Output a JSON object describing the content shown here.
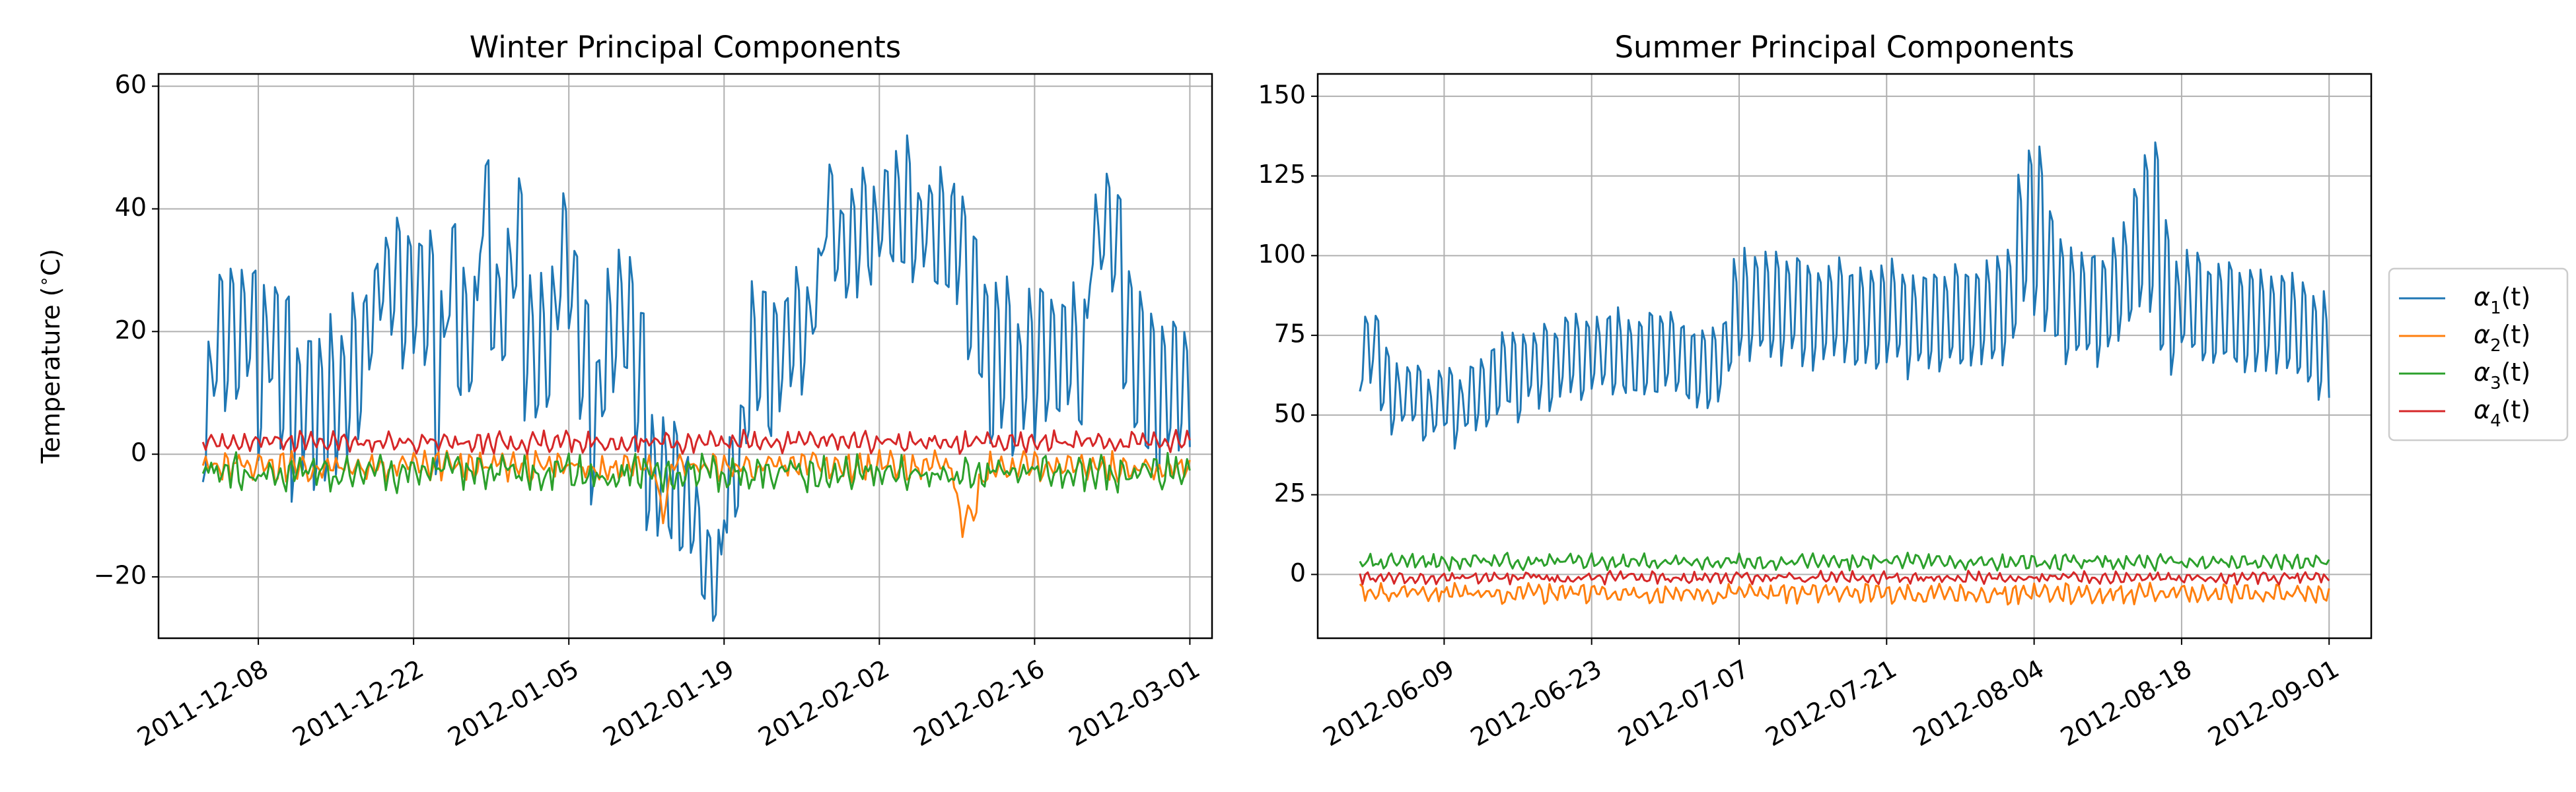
{
  "figure": {
    "colors": {
      "alpha1": "#1f77b4",
      "alpha2": "#ff7f0e",
      "alpha3": "#2ca02c",
      "alpha4": "#d62728",
      "grid": "#b0b0b0"
    },
    "legend": {
      "placement": "right of figure, vertically centered",
      "entries": [
        {
          "label": "α1(t)",
          "sym": "α",
          "sub": "1",
          "tail": "(t)",
          "color": "#1f77b4"
        },
        {
          "label": "α2(t)",
          "sym": "α",
          "sub": "2",
          "tail": "(t)",
          "color": "#ff7f0e"
        },
        {
          "label": "α3(t)",
          "sym": "α",
          "sub": "3",
          "tail": "(t)",
          "color": "#2ca02c"
        },
        {
          "label": "α4(t)",
          "sym": "α",
          "sub": "4",
          "tail": "(t)",
          "color": "#d62728"
        }
      ]
    }
  },
  "chart_data": [
    {
      "type": "line",
      "title": "Winter Principal Components",
      "xlabel": "",
      "ylabel": "Temperature (°C)",
      "ylabel_parts": {
        "pre": "Temperature (",
        "sup": "∘",
        "post": "C)"
      },
      "x_type": "date",
      "x_range": [
        "2011-12-03",
        "2012-03-01"
      ],
      "xlim": [
        "2011-11-29",
        "2012-03-03"
      ],
      "xticks": [
        "2011-12-08",
        "2011-12-22",
        "2012-01-05",
        "2012-01-19",
        "2012-02-02",
        "2012-02-16",
        "2012-03-01"
      ],
      "ylim": [
        -30,
        62
      ],
      "yticks": [
        -20,
        0,
        20,
        40,
        60
      ],
      "ytick_labels": [
        "−20",
        "0",
        "20",
        "40",
        "60"
      ],
      "grid": true,
      "samples_per_day": 4,
      "series": [
        {
          "name": "α1(t)",
          "color": "#1f77b4",
          "daily_base": [
            8,
            22,
            18,
            20,
            22,
            14,
            20,
            15,
            6,
            10,
            8,
            9,
            10,
            12,
            16,
            24,
            28,
            28,
            24,
            26,
            26,
            12,
            28,
            20,
            20,
            40,
            24,
            25,
            33,
            18,
            18,
            20,
            30,
            28,
            16,
            4,
            16,
            22,
            22,
            12,
            -4,
            -3,
            -5,
            -8,
            -12,
            -18,
            -20,
            -5,
            0,
            14,
            16,
            14,
            18,
            22,
            20,
            28,
            38,
            34,
            36,
            36,
            36,
            38,
            40,
            40,
            36,
            38,
            36,
            36,
            34,
            26,
            20,
            14,
            16,
            12,
            16,
            16,
            16,
            16,
            16,
            14,
            34,
            38,
            36,
            20,
            16,
            10,
            8,
            14,
            10
          ],
          "daily_amp": [
            16,
            12,
            14,
            12,
            12,
            18,
            12,
            14,
            16,
            14,
            14,
            14,
            14,
            14,
            14,
            10,
            10,
            12,
            14,
            12,
            12,
            16,
            12,
            14,
            12,
            10,
            12,
            12,
            12,
            12,
            12,
            14,
            12,
            10,
            14,
            16,
            14,
            12,
            12,
            16,
            12,
            10,
            10,
            10,
            8,
            6,
            6,
            10,
            12,
            14,
            14,
            14,
            12,
            10,
            10,
            10,
            8,
            10,
            10,
            10,
            10,
            10,
            10,
            12,
            10,
            10,
            10,
            10,
            10,
            12,
            12,
            14,
            14,
            14,
            14,
            14,
            12,
            12,
            12,
            14,
            10,
            10,
            10,
            12,
            14,
            14,
            14,
            12,
            12
          ],
          "noise": 3
        },
        {
          "name": "α2(t)",
          "color": "#ff7f0e",
          "mean": -2,
          "amp": 1.5,
          "noise": 1.5,
          "dips": [
            {
              "day": 41,
              "value": -10
            },
            {
              "day": 68,
              "value": -12
            },
            {
              "day": 69,
              "value": -9
            }
          ]
        },
        {
          "name": "α3(t)",
          "color": "#2ca02c",
          "mean": -3,
          "amp": 1.5,
          "noise": 2,
          "dips": []
        },
        {
          "name": "α4(t)",
          "color": "#d62728",
          "mean": 2,
          "amp": 1,
          "noise": 1,
          "dips": []
        }
      ]
    },
    {
      "type": "line",
      "title": "Summer Principal Components",
      "xlabel": "",
      "ylabel": "",
      "x_type": "date",
      "x_range": [
        "2012-06-01",
        "2012-09-01"
      ],
      "xlim": [
        "2012-05-28",
        "2012-09-05"
      ],
      "xticks": [
        "2012-06-09",
        "2012-06-23",
        "2012-07-07",
        "2012-07-21",
        "2012-08-04",
        "2012-08-18",
        "2012-09-01"
      ],
      "ylim": [
        -20,
        157
      ],
      "yticks": [
        0,
        25,
        50,
        75,
        100,
        125,
        150
      ],
      "ytick_labels": [
        "0",
        "25",
        "50",
        "75",
        "100",
        "125",
        "150"
      ],
      "grid": true,
      "samples_per_day": 4,
      "series": [
        {
          "name": "α1(t)",
          "color": "#1f77b4",
          "daily_base": [
            70,
            72,
            60,
            55,
            58,
            55,
            52,
            55,
            54,
            52,
            55,
            58,
            60,
            62,
            65,
            62,
            65,
            66,
            64,
            68,
            68,
            68,
            70,
            70,
            70,
            68,
            68,
            70,
            68,
            70,
            68,
            66,
            65,
            66,
            68,
            80,
            84,
            84,
            86,
            85,
            82,
            85,
            82,
            80,
            82,
            85,
            82,
            80,
            80,
            80,
            82,
            82,
            78,
            80,
            82,
            80,
            82,
            80,
            80,
            82,
            84,
            86,
            100,
            110,
            108,
            95,
            88,
            85,
            85,
            86,
            84,
            88,
            92,
            100,
            108,
            110,
            90,
            80,
            85,
            84,
            82,
            80,
            82,
            80,
            80,
            80,
            80,
            80,
            78,
            76,
            74,
            72,
            72
          ],
          "daily_amp": [
            12,
            12,
            12,
            12,
            10,
            10,
            10,
            12,
            12,
            12,
            12,
            14,
            14,
            14,
            14,
            14,
            14,
            14,
            14,
            14,
            14,
            14,
            14,
            14,
            14,
            14,
            14,
            14,
            14,
            14,
            14,
            14,
            14,
            14,
            14,
            20,
            20,
            20,
            18,
            18,
            18,
            18,
            18,
            18,
            18,
            18,
            18,
            18,
            18,
            18,
            18,
            18,
            18,
            18,
            18,
            18,
            18,
            18,
            18,
            18,
            20,
            22,
            32,
            32,
            30,
            22,
            20,
            20,
            20,
            20,
            20,
            20,
            22,
            28,
            32,
            32,
            26,
            20,
            18,
            18,
            18,
            18,
            18,
            18,
            18,
            18,
            18,
            18,
            18,
            18,
            18,
            18,
            16
          ],
          "noise": 3
        },
        {
          "name": "α2(t)",
          "color": "#ff7f0e",
          "mean": -6,
          "amp": 2,
          "noise": 1.8,
          "dips": []
        },
        {
          "name": "α3(t)",
          "color": "#2ca02c",
          "mean": 4,
          "amp": 1.5,
          "noise": 1.5,
          "dips": []
        },
        {
          "name": "α4(t)",
          "color": "#d62728",
          "mean": -1,
          "amp": 1,
          "noise": 1.2,
          "dips": []
        }
      ]
    }
  ]
}
